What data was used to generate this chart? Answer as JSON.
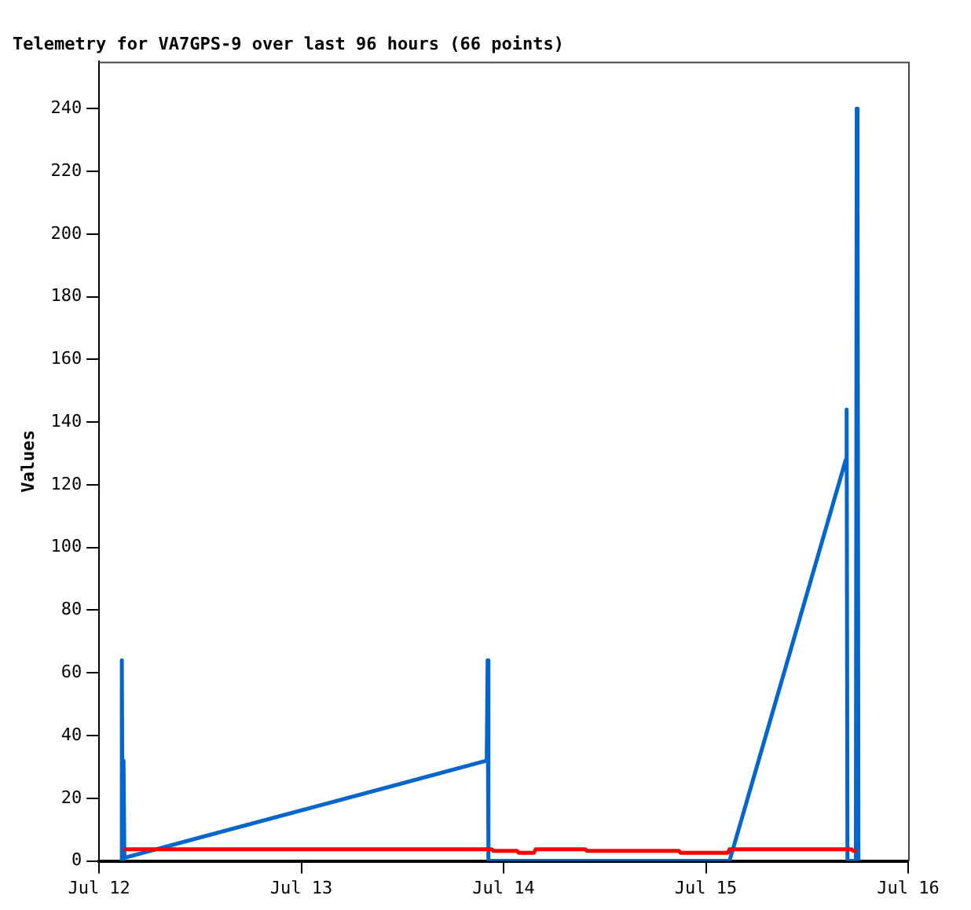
{
  "chart_data": {
    "type": "line",
    "title": "Telemetry for VA7GPS-9 over last 96 hours (66 points)",
    "ylabel": "Values",
    "xlim": [
      "--07-12",
      "--07-16"
    ],
    "xticks": [
      {
        "value": "--07-12",
        "label": "Jul 12"
      },
      {
        "value": "--07-13",
        "label": "Jul 13"
      },
      {
        "value": "--07-14",
        "label": "Jul 14"
      },
      {
        "value": "--07-15",
        "label": "Jul 15"
      },
      {
        "value": "--07-16",
        "label": "Jul 16"
      }
    ],
    "ylim": [
      0,
      255
    ],
    "yticks": [
      0,
      20,
      40,
      60,
      80,
      100,
      120,
      140,
      160,
      180,
      200,
      220,
      240
    ],
    "grid": false,
    "legend": false,
    "marker": "none",
    "line_style": "solid",
    "series": [
      {
        "color": "#ff0000",
        "x": [
          "--07-12T02:54",
          "--07-13T22:36",
          "--07-13T22:48",
          "--07-14T01:36",
          "--07-14T01:48",
          "--07-14T03:36",
          "--07-14T03:48",
          "--07-14T09:42",
          "--07-14T09:54",
          "--07-14T20:48",
          "--07-14T21:00",
          "--07-15T02:36",
          "--07-15T02:48",
          "--07-15T17:18",
          "--07-15T17:30",
          "--07-15T17:54"
        ],
        "values": [
          3.7,
          3.7,
          3.2,
          3.2,
          2.6,
          2.6,
          3.7,
          3.7,
          3.2,
          3.2,
          2.6,
          2.6,
          3.7,
          3.7,
          3.2,
          3.2
        ]
      },
      {
        "color": "#0066cc",
        "x": [
          "--07-12T02:36",
          "--07-12T02:42",
          "--07-12T02:48",
          "--07-12T02:54",
          "--07-12T03:00",
          "--07-13T22:00",
          "--07-13T22:06",
          "--07-13T22:12",
          "--07-15T02:48",
          "--07-15T16:36",
          "--07-15T16:42",
          "--07-15T16:48",
          "--07-15T17:48",
          "--07-15T17:54",
          "--07-15T18:00",
          "--07-15T18:06"
        ],
        "values": [
          0,
          64,
          0,
          32,
          1,
          32,
          64,
          0,
          0,
          128,
          144,
          0,
          0,
          240,
          208,
          0
        ]
      }
    ]
  }
}
